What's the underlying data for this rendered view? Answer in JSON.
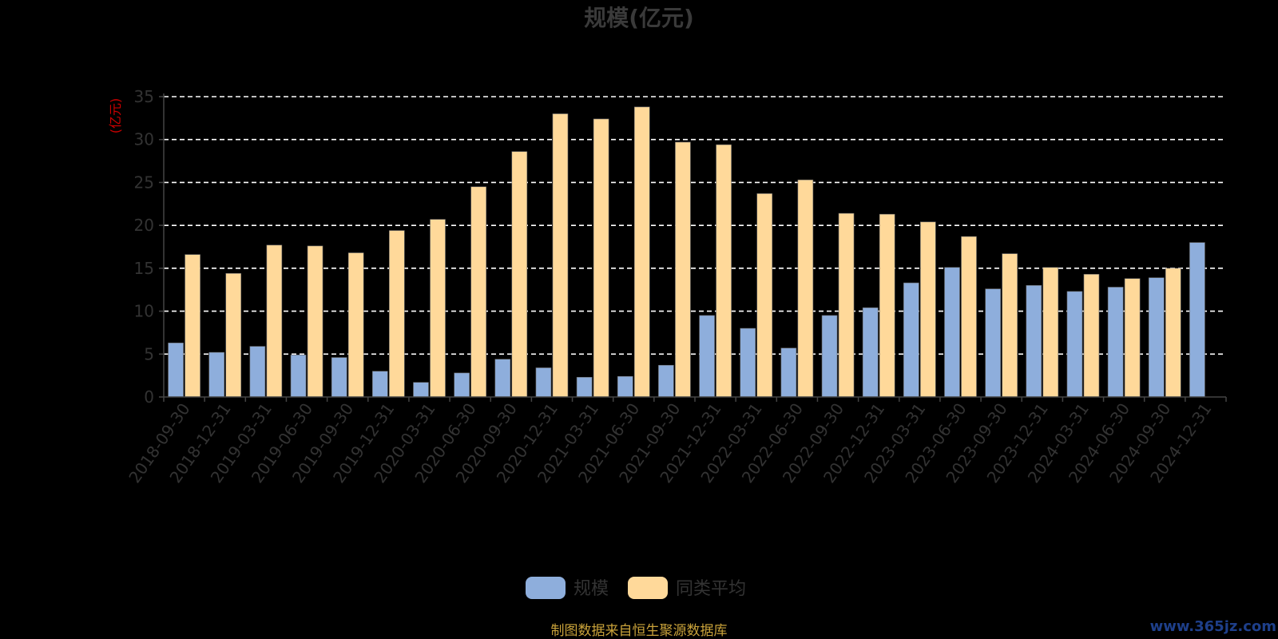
{
  "chart_data": {
    "type": "bar",
    "title": "规模(亿元)",
    "ylabel": "(亿元)",
    "ylim": [
      0,
      35
    ],
    "yticks": [
      0,
      5,
      10,
      15,
      20,
      25,
      30,
      35
    ],
    "grid": true,
    "legend_position": "bottom",
    "categories": [
      "2018-09-30",
      "2018-12-31",
      "2019-03-31",
      "2019-06-30",
      "2019-09-30",
      "2019-12-31",
      "2020-03-31",
      "2020-06-30",
      "2020-09-30",
      "2020-12-31",
      "2021-03-31",
      "2021-06-30",
      "2021-09-30",
      "2021-12-31",
      "2022-03-31",
      "2022-06-30",
      "2022-09-30",
      "2022-12-31",
      "2023-03-31",
      "2023-06-30",
      "2023-09-30",
      "2023-12-31",
      "2024-03-31",
      "2024-06-30",
      "2024-09-30",
      "2024-12-31"
    ],
    "series": [
      {
        "name": "规模",
        "color": "#8eaedc",
        "values": [
          6.3,
          5.2,
          5.9,
          4.9,
          4.6,
          3.0,
          1.7,
          2.8,
          4.4,
          3.4,
          2.3,
          2.4,
          3.7,
          9.5,
          8.0,
          5.7,
          9.5,
          10.4,
          13.3,
          15.1,
          12.6,
          13.0,
          12.3,
          12.8,
          13.9,
          18.0
        ]
      },
      {
        "name": "同类平均",
        "color": "#ffd99a",
        "values": [
          16.6,
          14.4,
          17.7,
          17.6,
          16.8,
          19.4,
          20.7,
          24.5,
          28.6,
          33.0,
          32.4,
          33.8,
          29.7,
          29.4,
          23.7,
          25.3,
          21.4,
          21.3,
          20.4,
          18.7,
          16.7,
          15.1,
          14.3,
          13.8,
          15.0,
          null
        ]
      }
    ]
  },
  "footer": {
    "source": "制图数据来自恒生聚源数据库",
    "watermark": "www.365jz.com"
  }
}
